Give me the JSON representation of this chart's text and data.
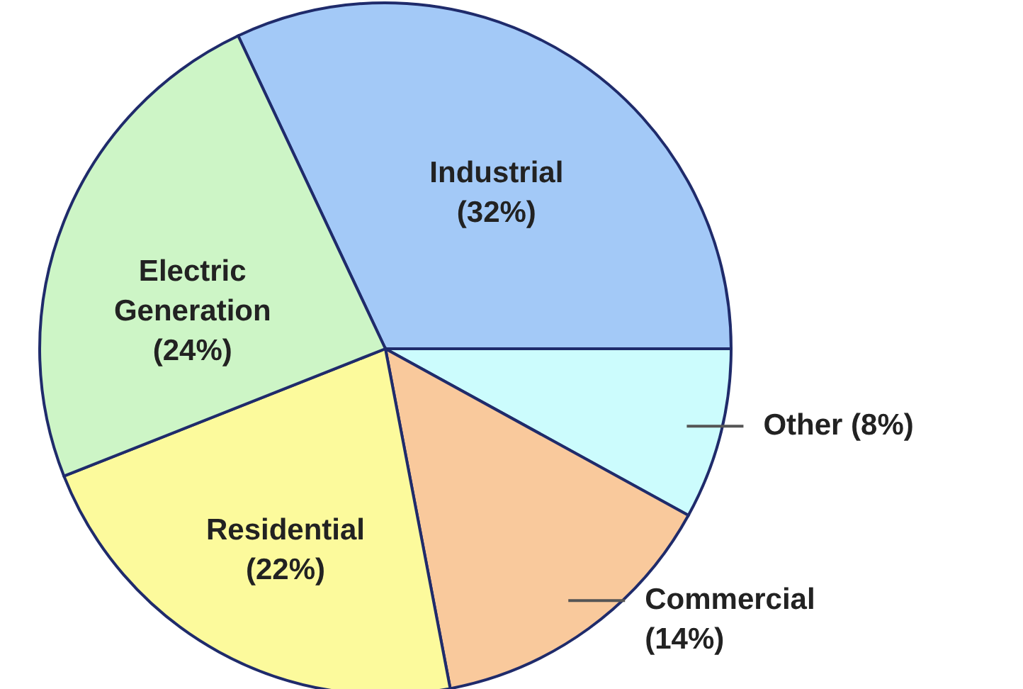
{
  "chart_data": {
    "type": "pie",
    "categories": [
      "Industrial",
      "Other",
      "Commercial",
      "Residential",
      "Electric Generation"
    ],
    "values": [
      32,
      8,
      14,
      22,
      24
    ],
    "colors": [
      "#a3c9f7",
      "#ccfcfd",
      "#f9c99c",
      "#fcfa9c",
      "#cdf5c6"
    ],
    "value_labels": [
      "(32%)",
      "(8%)",
      "(14%)",
      "(22%)",
      "(24%)"
    ]
  }
}
